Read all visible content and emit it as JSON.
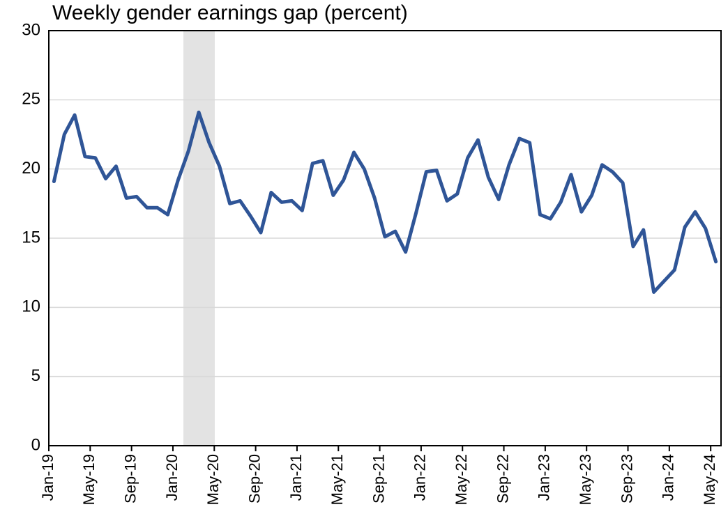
{
  "chart_data": {
    "type": "line",
    "title": "Weekly gender earnings gap (percent)",
    "categories": [
      "Jan-19",
      null,
      null,
      null,
      "May-19",
      null,
      null,
      null,
      "Sep-19",
      null,
      null,
      null,
      "Jan-20",
      null,
      null,
      null,
      "May-20",
      null,
      null,
      null,
      "Sep-20",
      null,
      null,
      null,
      "Jan-21",
      null,
      null,
      null,
      "May-21",
      null,
      null,
      null,
      "Sep-21",
      null,
      null,
      null,
      "Jan-22",
      null,
      null,
      null,
      "May-22",
      null,
      null,
      null,
      "Sep-22",
      null,
      null,
      null,
      "Jan-23",
      null,
      null,
      null,
      "May-23",
      null,
      null,
      null,
      "Sep-23",
      null,
      null,
      null,
      "Jan-24",
      null,
      null,
      null,
      "May-24"
    ],
    "values": [
      19.1,
      22.5,
      23.9,
      20.9,
      20.8,
      19.3,
      20.2,
      17.9,
      18.0,
      17.2,
      17.2,
      16.7,
      19.2,
      21.3,
      24.1,
      21.9,
      20.2,
      17.5,
      17.7,
      16.6,
      15.4,
      18.3,
      17.6,
      17.7,
      17.0,
      20.4,
      20.6,
      18.1,
      19.2,
      21.2,
      20.0,
      17.9,
      15.1,
      15.5,
      14.0,
      16.8,
      19.8,
      19.9,
      17.7,
      18.2,
      20.8,
      22.1,
      19.4,
      17.8,
      20.3,
      22.2,
      21.9,
      16.7,
      16.4,
      17.6,
      19.6,
      16.9,
      18.1,
      20.3,
      19.8,
      19.0,
      14.4,
      15.6,
      11.1,
      11.9,
      12.7,
      15.8,
      16.9,
      15.7,
      13.3
    ],
    "color": "#2f5597",
    "ylim": [
      0,
      30
    ],
    "yticks": [
      0,
      5,
      10,
      15,
      20,
      25,
      30
    ],
    "grid": true
  }
}
